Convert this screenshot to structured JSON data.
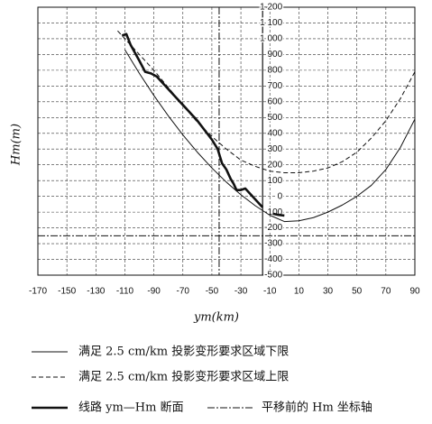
{
  "chart_data": {
    "type": "line",
    "xlabel": "ym(km)",
    "ylabel": "Hm(m)",
    "xlim": [
      -170,
      90
    ],
    "ylim": [
      -500,
      1200
    ],
    "xticks": [
      -170,
      -150,
      -130,
      -110,
      -90,
      -70,
      -50,
      -30,
      -10,
      10,
      30,
      50,
      70,
      90
    ],
    "yticks": [
      {
        "value": 1200,
        "label": "1 200"
      },
      {
        "value": 1100,
        "label": "1 100"
      },
      {
        "value": 1000,
        "label": "1 000"
      },
      900,
      800,
      700,
      600,
      500,
      400,
      300,
      200,
      100,
      0,
      -100,
      -200,
      -300,
      -400,
      -500
    ],
    "yaxis_at": -15,
    "grid": true,
    "series": [
      {
        "name": "满足 2.5 cm/km 投影变形要求区域下限",
        "style": "solid",
        "color": "#111",
        "x": [
          -110,
          -100,
          -90,
          -80,
          -70,
          -60,
          -50,
          -40,
          -30,
          -20,
          -10,
          0,
          10,
          20,
          30,
          40,
          50,
          60,
          70,
          80,
          90
        ],
        "values": [
          930,
          780,
          640,
          510,
          390,
          280,
          180,
          90,
          10,
          -60,
          -120,
          -160,
          -155,
          -135,
          -100,
          -55,
          0,
          70,
          170,
          310,
          490
        ]
      },
      {
        "name": "满足 2.5 cm/km 投影变形要求区域上限",
        "style": "dashed",
        "color": "#111",
        "x": [
          -115,
          -100,
          -90,
          -80,
          -70,
          -60,
          -50,
          -40,
          -30,
          -20,
          -10,
          0,
          10,
          20,
          30,
          40,
          50,
          60,
          70,
          80,
          90
        ],
        "values": [
          1050,
          900,
          800,
          690,
          580,
          470,
          380,
          300,
          230,
          190,
          160,
          150,
          150,
          160,
          180,
          220,
          280,
          370,
          480,
          620,
          790
        ]
      },
      {
        "name": "线路 ym—Hm 断面",
        "style": "thick",
        "color": "#111",
        "x": [
          -112,
          -109,
          -106,
          -103,
          -100,
          -96,
          -92,
          -88,
          -84,
          -80,
          -75,
          -70,
          -65,
          -60,
          -55,
          -50,
          -46,
          -43,
          -40,
          -37,
          -35,
          -33,
          -30,
          -27,
          -24,
          -21,
          -18,
          -15,
          -12,
          -8,
          -4,
          0
        ],
        "values": [
          1020,
          1030,
          960,
          910,
          860,
          790,
          780,
          760,
          720,
          680,
          630,
          580,
          530,
          480,
          420,
          360,
          300,
          210,
          170,
          110,
          80,
          40,
          40,
          50,
          20,
          -10,
          -40,
          -70,
          null,
          -110,
          -118,
          -122
        ]
      }
    ],
    "reference": {
      "name": "平移前的 Hm 坐标轴",
      "x": -45,
      "y": -250
    }
  }
}
